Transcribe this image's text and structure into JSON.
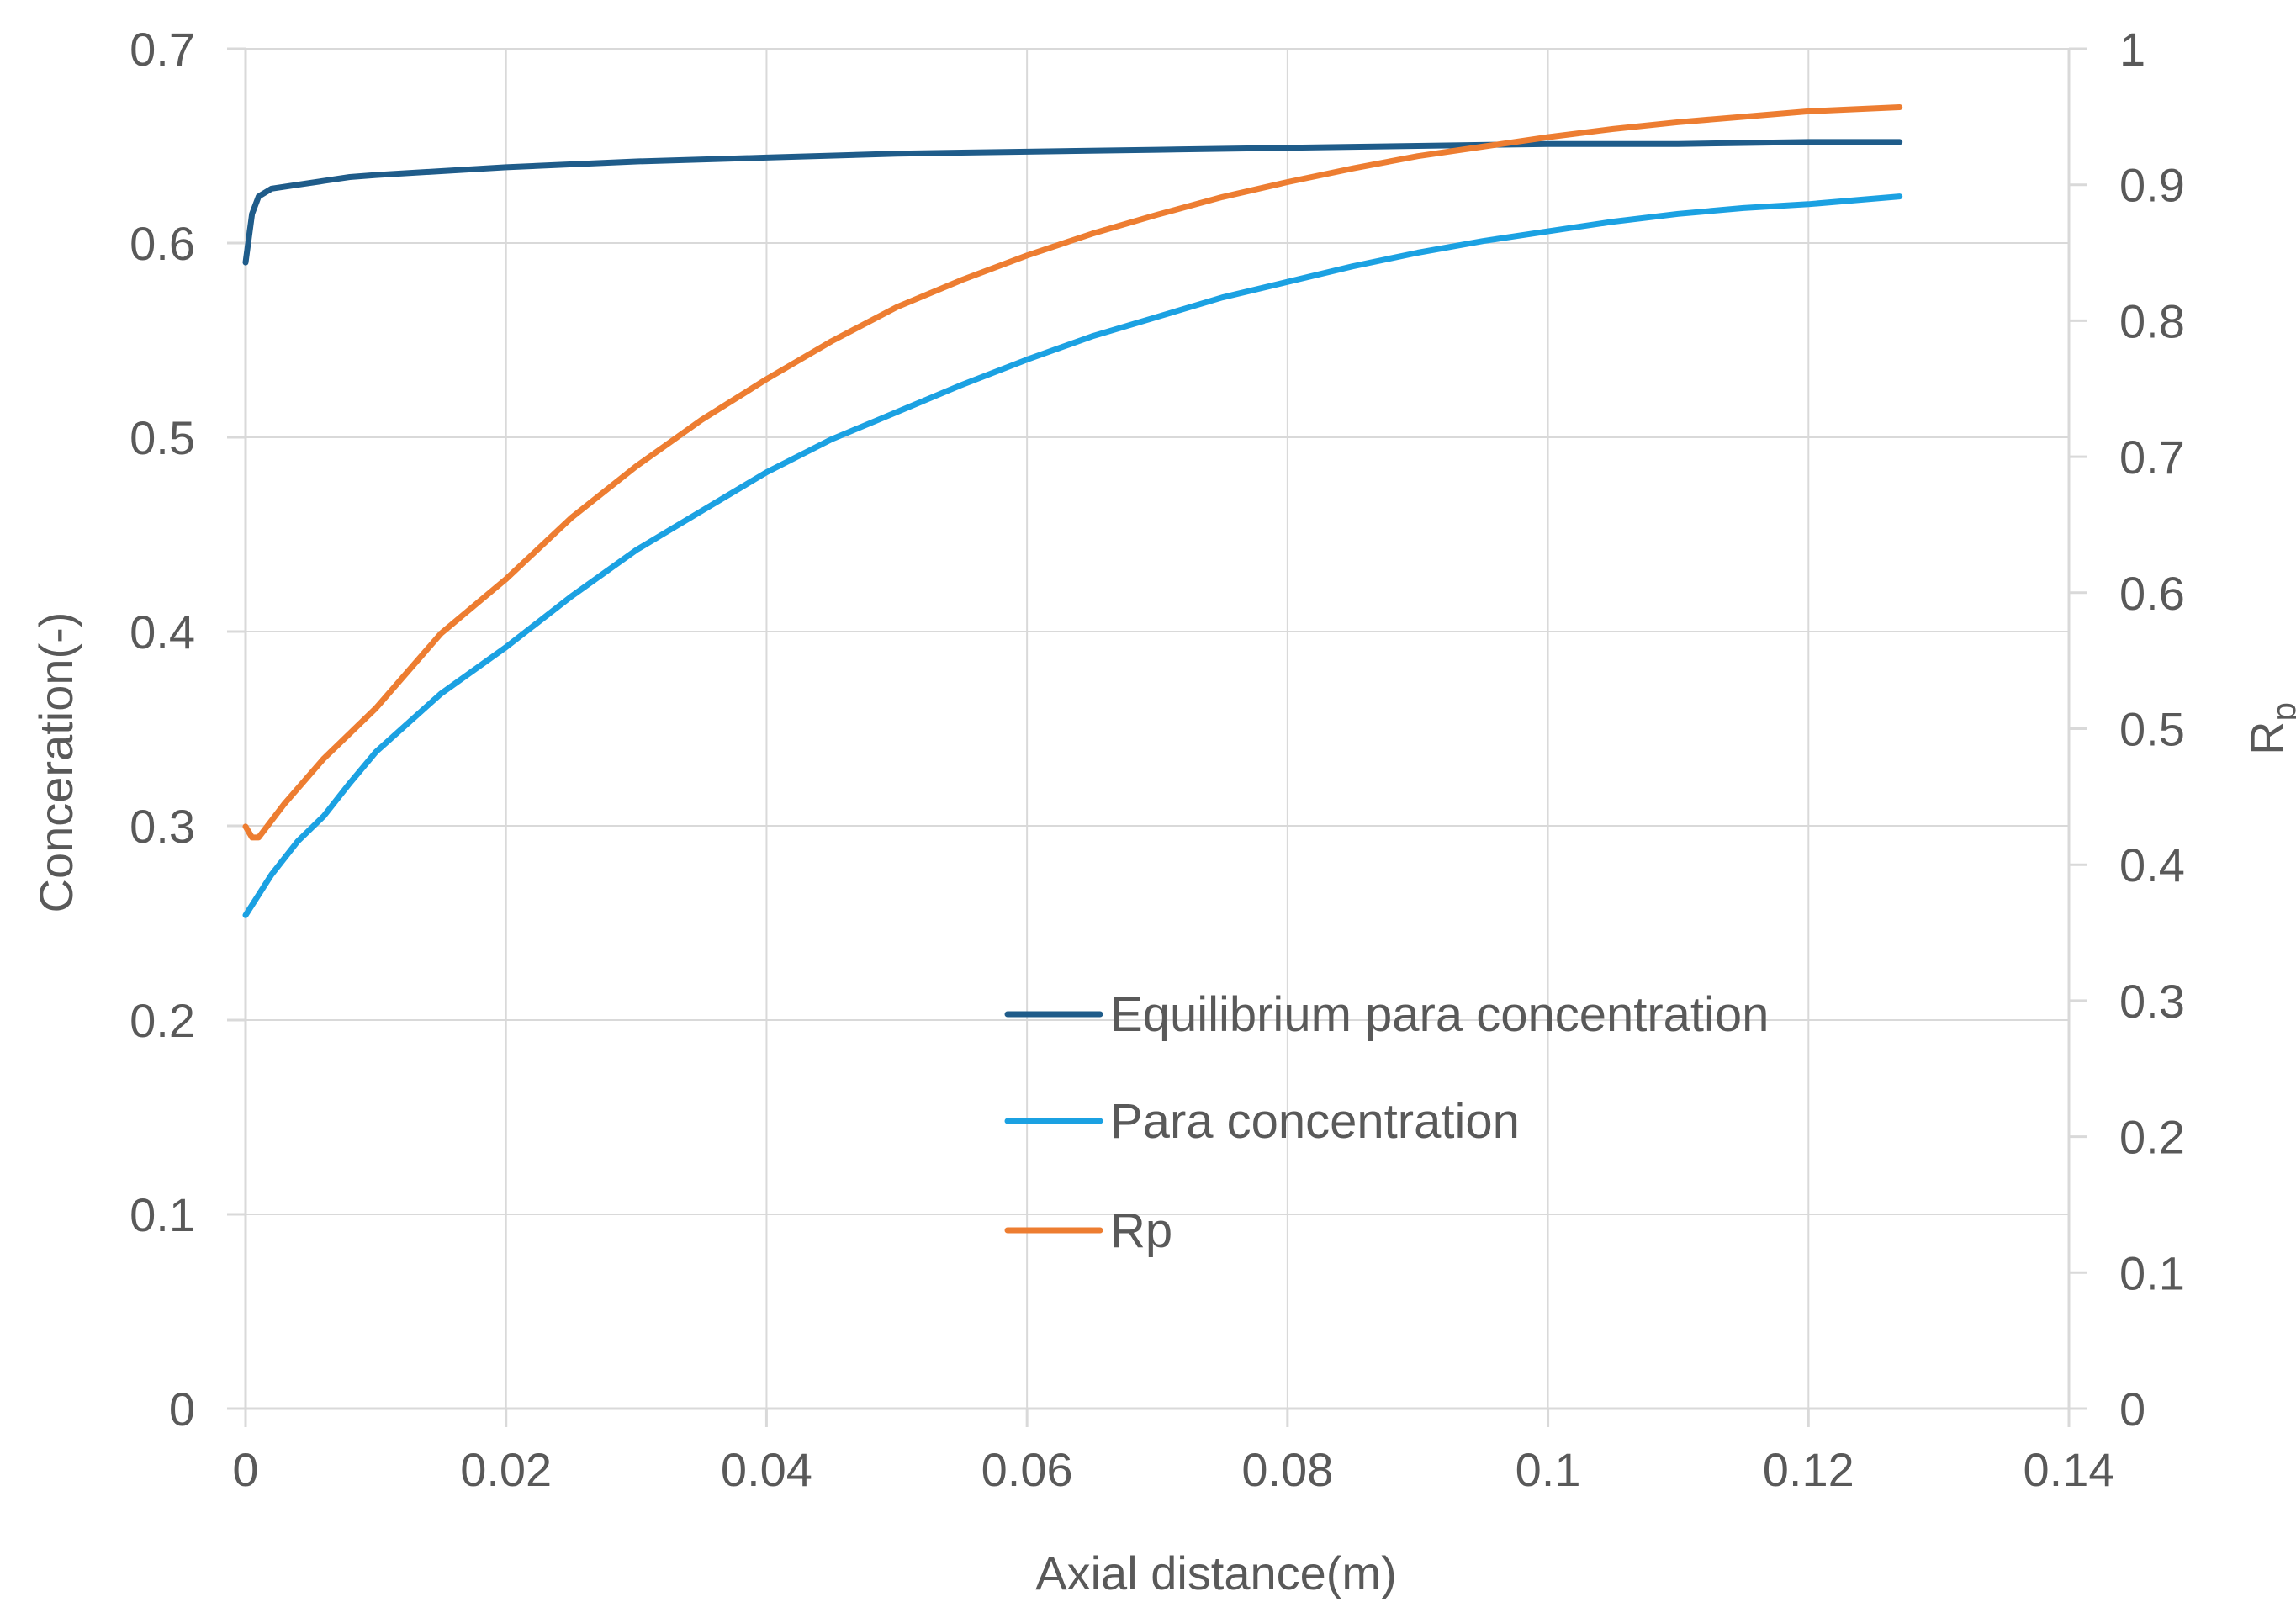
{
  "chart_data": {
    "type": "line",
    "title": "",
    "xlabel": "Axial distance(m)",
    "ylabel": "Conceration(-)",
    "y2label": {
      "base": "R",
      "sub": "p"
    },
    "xlim": [
      0,
      0.14
    ],
    "ylim": [
      0,
      0.7
    ],
    "y2lim": [
      0,
      1
    ],
    "x_ticks": [
      "0",
      "0.02",
      "0.04",
      "0.06",
      "0.08",
      "0.1",
      "0.12",
      "0.14"
    ],
    "y_ticks": [
      "0",
      "0.1",
      "0.2",
      "0.3",
      "0.4",
      "0.5",
      "0.6",
      "0.7"
    ],
    "y2_ticks": [
      "0",
      "0.1",
      "0.2",
      "0.3",
      "0.4",
      "0.5",
      "0.6",
      "0.7",
      "0.8",
      "0.9",
      "1"
    ],
    "grid": true,
    "legend_position": "center-right",
    "series": [
      {
        "name": "Equilibrium para concentration",
        "axis": "left",
        "color": "#1f5c8a",
        "x": [
          0,
          0.0005,
          0.001,
          0.002,
          0.004,
          0.006,
          0.008,
          0.01,
          0.015,
          0.02,
          0.03,
          0.04,
          0.05,
          0.06,
          0.07,
          0.08,
          0.09,
          0.1,
          0.11,
          0.12,
          0.127
        ],
        "values": [
          0.59,
          0.615,
          0.624,
          0.628,
          0.63,
          0.632,
          0.634,
          0.635,
          0.637,
          0.639,
          0.642,
          0.644,
          0.646,
          0.647,
          0.648,
          0.649,
          0.65,
          0.651,
          0.651,
          0.652,
          0.652
        ]
      },
      {
        "name": "Para concentration",
        "axis": "left",
        "color": "#1ba1e2",
        "x": [
          0,
          0.002,
          0.004,
          0.006,
          0.008,
          0.01,
          0.012,
          0.015,
          0.02,
          0.025,
          0.03,
          0.035,
          0.04,
          0.045,
          0.05,
          0.055,
          0.06,
          0.065,
          0.07,
          0.075,
          0.08,
          0.085,
          0.09,
          0.095,
          0.1,
          0.105,
          0.11,
          0.115,
          0.12,
          0.127
        ],
        "values": [
          0.254,
          0.275,
          0.292,
          0.305,
          0.322,
          0.338,
          0.35,
          0.368,
          0.392,
          0.418,
          0.442,
          0.462,
          0.482,
          0.499,
          0.513,
          0.527,
          0.54,
          0.552,
          0.562,
          0.572,
          0.58,
          0.588,
          0.595,
          0.601,
          0.606,
          0.611,
          0.615,
          0.618,
          0.62,
          0.624
        ]
      },
      {
        "name": "Rp",
        "axis": "right",
        "color": "#ed7d31",
        "x": [
          0,
          0.0005,
          0.001,
          0.003,
          0.006,
          0.01,
          0.015,
          0.02,
          0.025,
          0.03,
          0.035,
          0.04,
          0.045,
          0.05,
          0.055,
          0.06,
          0.065,
          0.07,
          0.075,
          0.08,
          0.085,
          0.09,
          0.095,
          0.1,
          0.105,
          0.11,
          0.115,
          0.12,
          0.127
        ],
        "values": [
          0.428,
          0.42,
          0.42,
          0.445,
          0.478,
          0.515,
          0.57,
          0.61,
          0.655,
          0.693,
          0.727,
          0.757,
          0.785,
          0.81,
          0.83,
          0.848,
          0.864,
          0.878,
          0.891,
          0.902,
          0.912,
          0.921,
          0.928,
          0.935,
          0.941,
          0.946,
          0.95,
          0.954,
          0.957
        ]
      }
    ]
  }
}
